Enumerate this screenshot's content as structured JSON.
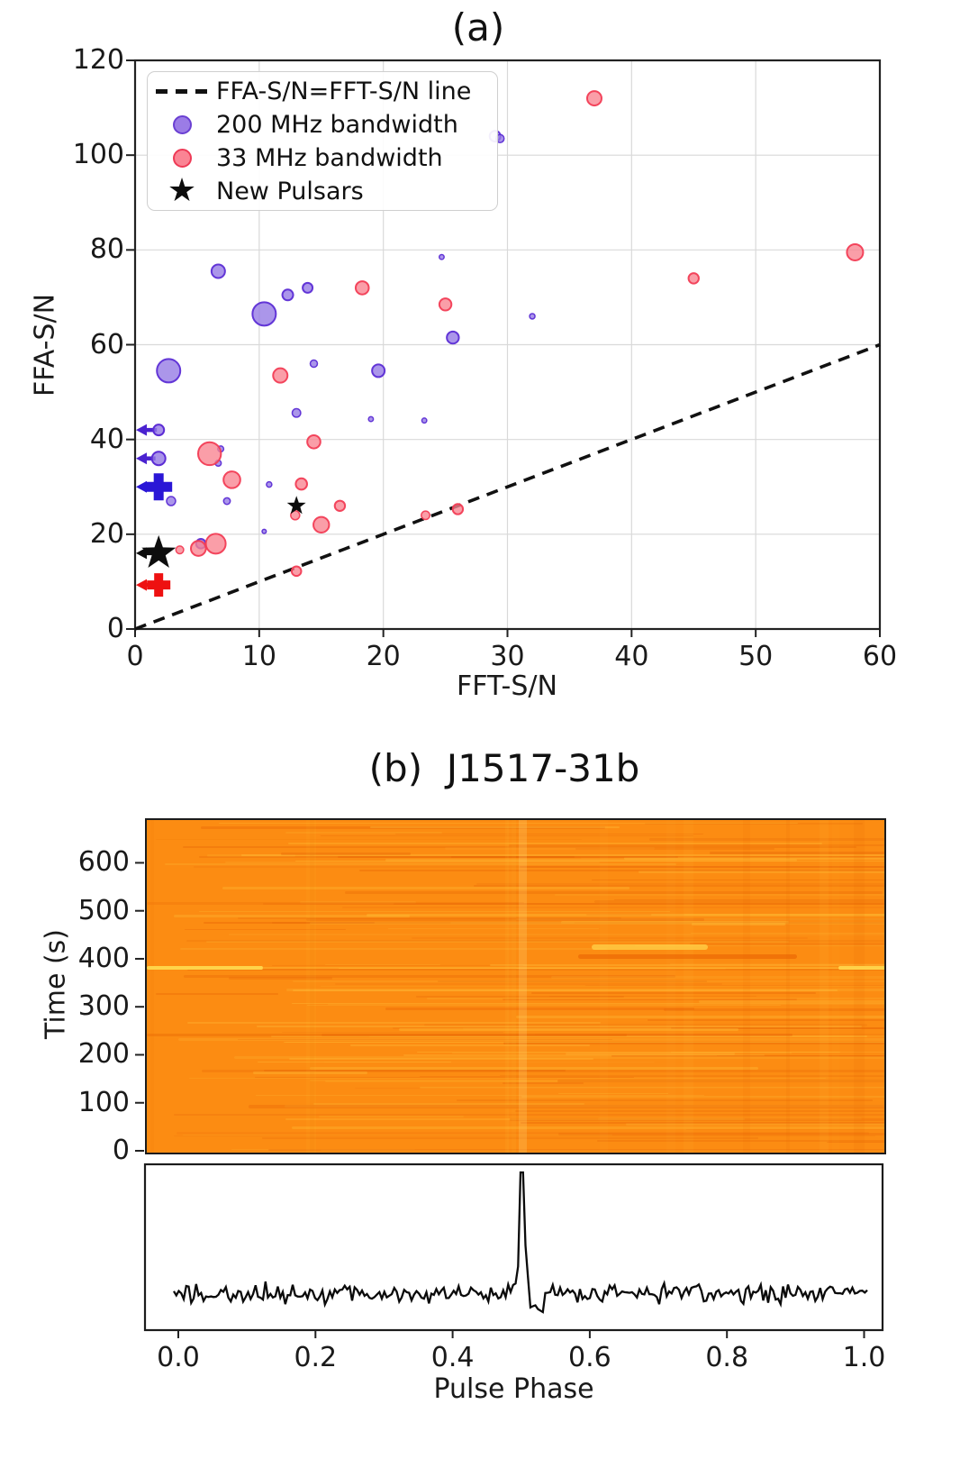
{
  "chart_data": [
    {
      "id": "ffa-vs-fft-scatter",
      "type": "scatter",
      "title": "(a)",
      "xlabel": "FFT-S/N",
      "ylabel": "FFA-S/N",
      "xlim": [
        0,
        60
      ],
      "ylim": [
        0,
        120
      ],
      "x_ticks": [
        0,
        10,
        20,
        30,
        40,
        50,
        60
      ],
      "y_ticks": [
        0,
        20,
        40,
        60,
        80,
        100,
        120
      ],
      "grid": true,
      "legend_position": "upper-left",
      "legend": [
        {
          "marker": "dashed-line",
          "label": "FFA-S/N=FFT-S/N line"
        },
        {
          "marker": "purple-circle",
          "label": "200 MHz bandwidth"
        },
        {
          "marker": "pink-circle",
          "label": "33 MHz bandwidth"
        },
        {
          "marker": "black-star",
          "label": "New Pulsars",
          "glyph": "★"
        }
      ],
      "identity_line": {
        "from": [
          0,
          0
        ],
        "to": [
          60,
          60
        ],
        "style": "dashed",
        "color": "#111111"
      },
      "colors": {
        "purple_fill": "#9478e4",
        "purple_edge": "#5c2dd5",
        "pink_fill": "#f9838f",
        "pink_edge": "#f23d55",
        "black": "#0d0d0d",
        "blue_cross": "#2a16d6",
        "red_cross": "#ee1111",
        "purple_arrow": "#4a22d0",
        "grid": "#d9d9d9",
        "spine": "#222222"
      },
      "series": [
        {
          "name": "200 MHz bandwidth",
          "points": [
            {
              "x": 2.7,
              "y": 54.5,
              "r": 13
            },
            {
              "x": 6.7,
              "y": 75.5,
              "r": 7.5
            },
            {
              "x": 10.4,
              "y": 66.5,
              "r": 13
            },
            {
              "x": 12.3,
              "y": 70.5,
              "r": 6
            },
            {
              "x": 13.9,
              "y": 72,
              "r": 5.5
            },
            {
              "x": 14.4,
              "y": 56,
              "r": 4
            },
            {
              "x": 19.6,
              "y": 54.5,
              "r": 7
            },
            {
              "x": 24.7,
              "y": 78.5,
              "r": 2.7
            },
            {
              "x": 25.6,
              "y": 61.5,
              "r": 6.7
            },
            {
              "x": 29.0,
              "y": 104,
              "r": 6,
              "alpha": 0.35
            },
            {
              "x": 29.4,
              "y": 103.5,
              "r": 4.5
            },
            {
              "x": 32,
              "y": 66,
              "r": 3
            },
            {
              "x": 13,
              "y": 45.6,
              "r": 4.7
            },
            {
              "x": 19,
              "y": 44.3,
              "r": 2.7
            },
            {
              "x": 23.3,
              "y": 44,
              "r": 2.7
            },
            {
              "x": 10.8,
              "y": 30.5,
              "r": 3
            },
            {
              "x": 10.4,
              "y": 20.6,
              "r": 2.3
            },
            {
              "x": 7.4,
              "y": 27,
              "r": 3.7
            },
            {
              "x": 2.9,
              "y": 27,
              "r": 5
            },
            {
              "x": 6.9,
              "y": 38,
              "r": 3.3
            },
            {
              "x": 6.7,
              "y": 35,
              "r": 3.3
            },
            {
              "x": 5.3,
              "y": 18,
              "r": 5.3
            }
          ]
        },
        {
          "name": "33 MHz bandwidth",
          "points": [
            {
              "x": 37,
              "y": 112,
              "r": 8
            },
            {
              "x": 58,
              "y": 79.5,
              "r": 9
            },
            {
              "x": 45,
              "y": 74,
              "r": 5.7
            },
            {
              "x": 25,
              "y": 68.5,
              "r": 6.7
            },
            {
              "x": 18.3,
              "y": 72,
              "r": 7.3
            },
            {
              "x": 11.7,
              "y": 53.5,
              "r": 8
            },
            {
              "x": 6,
              "y": 37,
              "r": 12.7
            },
            {
              "x": 7.8,
              "y": 31.5,
              "r": 9.3
            },
            {
              "x": 14.4,
              "y": 39.5,
              "r": 7.3
            },
            {
              "x": 13.4,
              "y": 30.6,
              "r": 6.3
            },
            {
              "x": 12.9,
              "y": 24,
              "r": 5
            },
            {
              "x": 16.5,
              "y": 26,
              "r": 5.7
            },
            {
              "x": 15,
              "y": 22,
              "r": 8.7
            },
            {
              "x": 23.4,
              "y": 24,
              "r": 4.7
            },
            {
              "x": 26,
              "y": 25.3,
              "r": 5.7
            },
            {
              "x": 13,
              "y": 12.2,
              "r": 5.3
            },
            {
              "x": 3.6,
              "y": 16.7,
              "r": 4.3
            },
            {
              "x": 5.1,
              "y": 17,
              "r": 8.3
            },
            {
              "x": 6.5,
              "y": 18,
              "r": 11
            }
          ]
        },
        {
          "name": "New Pulsars",
          "marker": "star",
          "points": [
            {
              "x": 13,
              "y": 26,
              "R": 11
            }
          ]
        }
      ],
      "upper_limits": [
        {
          "x": 1.9,
          "y": 42,
          "marker": "circle",
          "r": 6,
          "color": "purple"
        },
        {
          "x": 1.9,
          "y": 36,
          "marker": "circle",
          "r": 7.5,
          "color": "purple"
        },
        {
          "x": 1.9,
          "y": 30,
          "marker": "plus",
          "s": 15,
          "t": 5.5,
          "color": "blue"
        },
        {
          "x": 1.9,
          "y": 16,
          "marker": "star",
          "R": 20,
          "color": "black"
        },
        {
          "x": 1.9,
          "y": 9.3,
          "marker": "plus",
          "s": 13,
          "t": 5,
          "color": "red"
        }
      ]
    },
    {
      "id": "j1517-waterfall",
      "type": "heatmap",
      "title": "(b)  J1517-31b",
      "ylabel": "Time (s)",
      "y_ticks": [
        0,
        100,
        200,
        300,
        400,
        500,
        600
      ],
      "y_range": [
        0,
        692
      ],
      "x_range": [
        -0.05,
        1.03
      ],
      "base_color": "#fc8c12",
      "noise": {
        "seed": 20240907,
        "h_lines": 165,
        "v_cols": 14,
        "light": "255,195,60",
        "dark": "228,95,4"
      },
      "features": [
        {
          "t": 385,
          "p0": -0.05,
          "p1": 0.12,
          "h": 4,
          "color": "#ffd84e",
          "alpha": 0.95
        },
        {
          "t": 385,
          "p0": 0.12,
          "p1": 0.96,
          "h": 2,
          "color": "#ffc33a",
          "alpha": 0.38
        },
        {
          "t": 385,
          "p0": 0.96,
          "p1": 1.03,
          "h": 4,
          "color": "#ffd84e",
          "alpha": 0.92
        },
        {
          "t": 428,
          "p0": 0.6,
          "p1": 0.77,
          "h": 6,
          "color": "#ffd24a",
          "alpha": 0.75
        },
        {
          "t": 408,
          "p0": 0.58,
          "p1": 0.9,
          "h": 5,
          "color": "#e85f00",
          "alpha": 0.55
        },
        {
          "t": 300,
          "p0": 0.3,
          "p1": 0.75,
          "h": 3,
          "color": "#ea6502",
          "alpha": 0.38
        },
        {
          "t": 245,
          "p0": -0.05,
          "p1": 0.65,
          "h": 3,
          "color": "#ec6a04",
          "alpha": 0.45
        },
        {
          "t": 95,
          "p0": 0.1,
          "p1": 1.03,
          "h": 4,
          "color": "#ee7008",
          "alpha": 0.5
        },
        {
          "t": 150,
          "p0": 0.55,
          "p1": 1.03,
          "h": 3,
          "color": "#ec6a04",
          "alpha": 0.4
        },
        {
          "t": 520,
          "p0": -0.05,
          "p1": 0.5,
          "h": 3,
          "color": "#ee7008",
          "alpha": 0.35
        },
        {
          "t": 610,
          "p0": 0.3,
          "p1": 0.9,
          "h": 3,
          "color": "#ffc33a",
          "alpha": 0.3
        }
      ],
      "vertical_features": [
        {
          "p": 0.5,
          "w": 9,
          "color": "255,224,138",
          "alpha": 0.22
        }
      ]
    },
    {
      "id": "j1517-profile",
      "type": "line",
      "xlabel": "Pulse Phase",
      "x_ticks": [
        0.0,
        0.2,
        0.4,
        0.6,
        0.8,
        1.0
      ],
      "x_range": [
        -0.05,
        1.03
      ],
      "line_color": "#0b0b0b",
      "peak_phase": 0.502,
      "noise": {
        "seed": 4242,
        "n_step": 2.75,
        "baseline": 1435,
        "amp": 15
      }
    }
  ]
}
